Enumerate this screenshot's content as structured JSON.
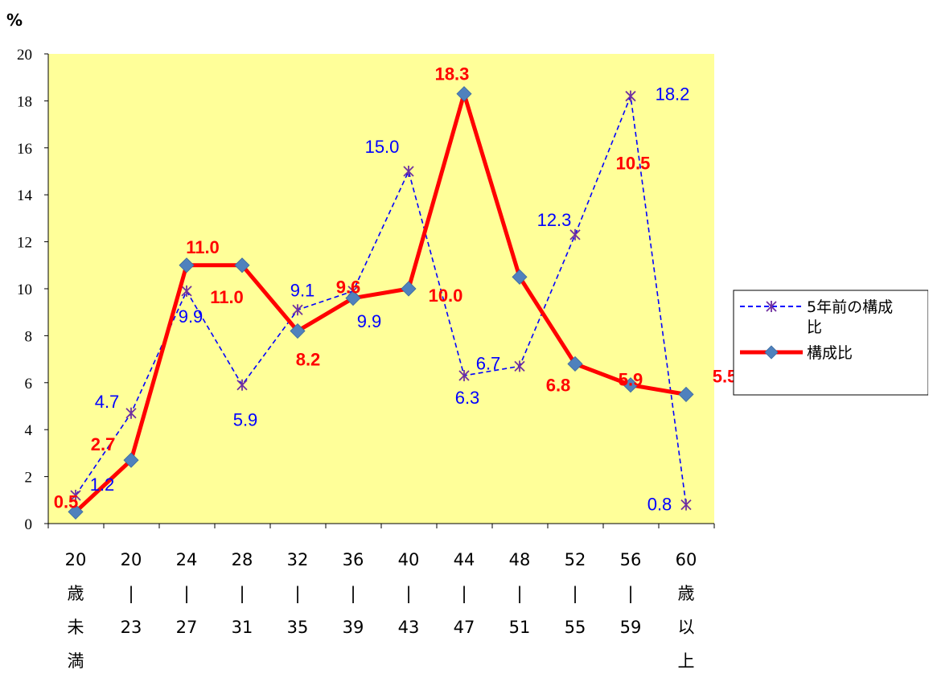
{
  "chart_data": {
    "type": "line",
    "title": "",
    "xlabel": "",
    "ylabel": "%",
    "ylim": [
      0,
      20
    ],
    "ytick_step": 2,
    "grid": false,
    "legend_position": "right",
    "categories": [
      [
        "20",
        "歳",
        "未",
        "満"
      ],
      [
        "20",
        "|",
        "23"
      ],
      [
        "24",
        "|",
        "27"
      ],
      [
        "28",
        "|",
        "31"
      ],
      [
        "32",
        "|",
        "35"
      ],
      [
        "36",
        "|",
        "39"
      ],
      [
        "40",
        "|",
        "43"
      ],
      [
        "44",
        "|",
        "47"
      ],
      [
        "48",
        "|",
        "51"
      ],
      [
        "52",
        "|",
        "55"
      ],
      [
        "56",
        "|",
        "59"
      ],
      [
        "60",
        "歳",
        "以",
        "上"
      ]
    ],
    "series": [
      {
        "name": "5年前の構成比",
        "values": [
          1.2,
          4.7,
          9.9,
          5.9,
          9.1,
          9.9,
          15.0,
          6.3,
          6.7,
          12.3,
          18.2,
          0.8
        ],
        "labels": [
          "1.2",
          "4.7",
          "9.9",
          "5.9",
          "9.1",
          "9.9",
          "15.0",
          "6.3",
          "6.7",
          "12.3",
          "18.2",
          "0.8"
        ],
        "color": "#0000ff",
        "marker_color": "#7030a0",
        "style": "dashed",
        "marker": "asterisk"
      },
      {
        "name": "構成比",
        "values": [
          0.5,
          2.7,
          11.0,
          11.0,
          8.2,
          9.6,
          10.0,
          18.3,
          10.5,
          6.8,
          5.9,
          5.5
        ],
        "labels": [
          "0.5",
          "2.7",
          "11.0",
          "11.0",
          "8.2",
          "9.6",
          "10.0",
          "18.3",
          "10.5",
          "6.8",
          "5.9",
          "5.5"
        ],
        "color": "#ff0000",
        "marker_color": "#4f81bd",
        "style": "solid",
        "marker": "diamond"
      }
    ],
    "plot_background": "#ffff99",
    "legend": {
      "line1": "5年前の構成",
      "line1_wrap": "比",
      "line2": "構成比"
    }
  }
}
